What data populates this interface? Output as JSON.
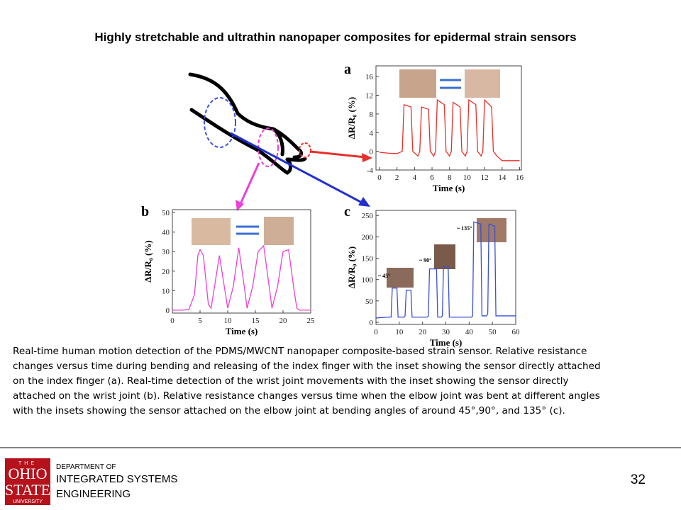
{
  "header": {
    "title": "Highly stretchable and ultrathin nanopaper composites for epidermal strain sensors"
  },
  "chart_data": [
    {
      "type": "line",
      "panel_label": "a",
      "ylabel": "ΔR/R₀ (%)",
      "xlabel": "Time (s)",
      "x": [
        0,
        1,
        2,
        2.6,
        2.8,
        3.6,
        3.8,
        4.4,
        4.6,
        4.8,
        5.6,
        5.8,
        6.2,
        6.4,
        6.6,
        7.4,
        7.6,
        8.0,
        8.2,
        8.4,
        9.2,
        9.4,
        9.8,
        10.0,
        10.2,
        11.0,
        11.2,
        11.6,
        11.8,
        12.0,
        12.8,
        13.0,
        13.4,
        14,
        15,
        16
      ],
      "series": [
        {
          "color": "#e8302a",
          "values": [
            -0.2,
            -0.4,
            -0.5,
            0,
            10,
            9.5,
            0,
            -1,
            0,
            9.5,
            9,
            0,
            -1,
            0,
            11,
            10,
            0,
            -1,
            0,
            10.5,
            9.5,
            0,
            -1,
            0,
            11,
            10,
            0,
            -1,
            0,
            11,
            9.5,
            0,
            -1,
            -2,
            -2,
            -2
          ]
        }
      ],
      "xlim": [
        -0.4,
        16.2
      ],
      "ylim": [
        -4,
        18.3
      ],
      "xticks": [
        0,
        2,
        4,
        6,
        8,
        10,
        12,
        14,
        16
      ],
      "yticks": [
        -4,
        0,
        4,
        8,
        12,
        16
      ]
    },
    {
      "type": "line",
      "panel_label": "b",
      "ylabel": "ΔR/R₀ (%)",
      "xlabel": "Time (s)",
      "x": [
        0,
        2,
        3,
        4,
        4.6,
        5,
        5.6,
        6.5,
        7,
        7.5,
        8.5,
        9.5,
        10,
        11,
        12,
        13,
        13.5,
        14.5,
        15.5,
        16.5,
        17.5,
        18,
        19,
        20,
        21,
        22,
        22.5,
        23,
        25
      ],
      "series": [
        {
          "color": "#ee3fd8",
          "values": [
            0,
            0,
            0.5,
            8,
            28,
            31,
            28,
            3,
            1,
            10,
            28,
            10,
            1,
            12,
            32,
            12,
            1,
            12,
            30,
            33,
            12,
            1,
            12,
            30,
            31,
            10,
            1,
            0,
            0
          ]
        }
      ],
      "xlim": [
        0,
        25
      ],
      "ylim": [
        -1.5,
        51.5
      ],
      "xticks": [
        0,
        5,
        10,
        15,
        20,
        25
      ],
      "yticks": [
        0,
        10,
        20,
        30,
        40,
        50
      ]
    },
    {
      "type": "line",
      "panel_label": "c",
      "ylabel": "ΔR/R₀ (%)",
      "xlabel": "Time (s)",
      "x": [
        0,
        5,
        6.5,
        7,
        9,
        9.5,
        12,
        12.5,
        13,
        15,
        15.5,
        22,
        22.5,
        23,
        26,
        26.5,
        28,
        28.5,
        29,
        31,
        31.5,
        41,
        41.5,
        42,
        45,
        45.5,
        47.5,
        48,
        48.5,
        51,
        51.5,
        58,
        60
      ],
      "series": [
        {
          "color": "#3a4fd6",
          "values": [
            10,
            12,
            12,
            80,
            80,
            12,
            12,
            15,
            75,
            75,
            12,
            12,
            15,
            125,
            125,
            12,
            12,
            15,
            130,
            130,
            12,
            12,
            15,
            235,
            230,
            15,
            15,
            20,
            230,
            225,
            15,
            15,
            15
          ]
        }
      ],
      "annotations": [
        "~ 45°",
        "~ 90°",
        "~ 135°"
      ],
      "xlim": [
        0,
        60
      ],
      "ylim": [
        -5,
        262
      ],
      "xticks": [
        0,
        10,
        20,
        30,
        40,
        50,
        60
      ],
      "yticks": [
        0,
        50,
        100,
        150,
        200,
        250
      ]
    }
  ],
  "caption": {
    "lines": [
      "Real-time human motion detection of the PDMS/MWCNT nanopaper composite-based strain sensor. Relative resistance",
      "changes versus time during bending and releasing of the index finger with the inset showing the sensor directly attached",
      "on the index finger (a). Real-time detection of the wrist joint movements with the inset showing the sensor directly",
      "attached on the wrist joint (b). Relative resistance changes versus time when the elbow joint was bent at different angles",
      "with the insets showing the sensor attached on the elbow joint at bending angles of around 45°,90°, and 135° (c)."
    ]
  },
  "footer": {
    "logo": [
      "THE",
      "OHIO",
      "STATE",
      "UNIVERSITY"
    ],
    "department": [
      "DEPARTMENT OF",
      "INTEGRATED SYSTEMS",
      "ENGINEERING"
    ],
    "page_number": "32"
  }
}
